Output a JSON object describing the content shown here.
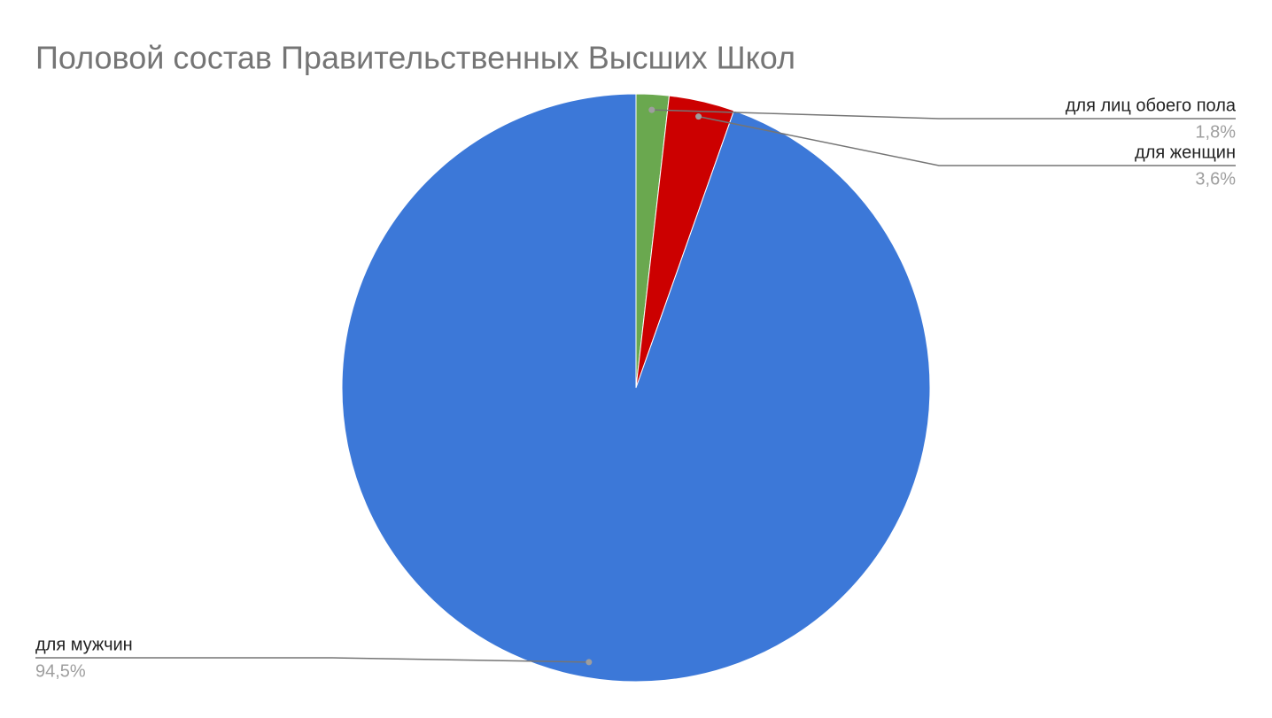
{
  "chart_data": {
    "type": "pie",
    "title": "Половой состав Правительственных Высших Школ",
    "categories": [
      "для лиц обоего пола",
      "для женщин",
      "для мужчин"
    ],
    "values": [
      1.8,
      3.6,
      94.5
    ],
    "value_labels": [
      "1,8%",
      "3,6%",
      "94,5%"
    ],
    "colors": [
      "#6aa84f",
      "#cc0000",
      "#3c78d8"
    ]
  }
}
